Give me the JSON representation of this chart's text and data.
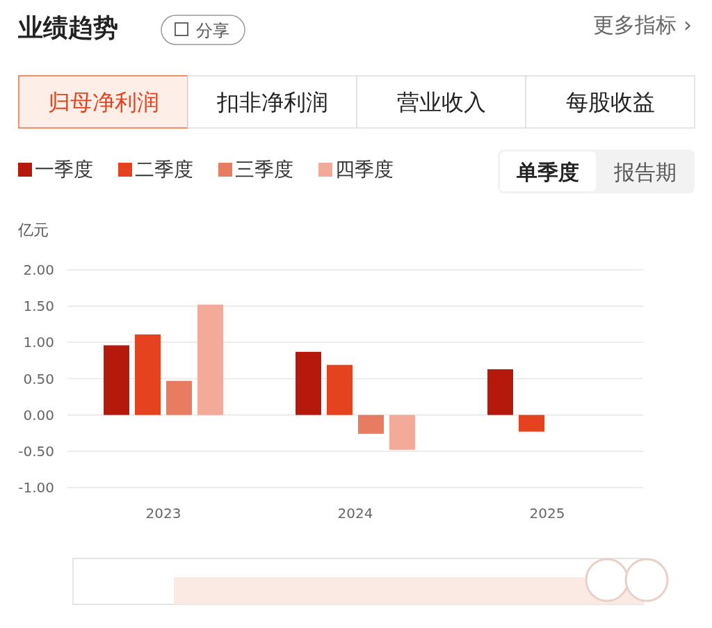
{
  "chart_data": {
    "type": "bar",
    "title": "业绩趋势",
    "ylabel": "亿元",
    "annotations": [
      "分享",
      "更多指标 ›",
      "归母净利润",
      "扣非净利润",
      "营业收入",
      "每股收益",
      "单季度",
      "报告期"
    ],
    "categories": [
      "2023",
      "2024",
      "2025"
    ],
    "series": [
      {
        "name": "一季度",
        "color": "#b5190b",
        "values": [
          0.96,
          0.87,
          0.63
        ]
      },
      {
        "name": "二季度",
        "color": "#e5431f",
        "values": [
          1.11,
          0.69,
          -0.23
        ]
      },
      {
        "name": "三季度",
        "color": "#e87c60",
        "values": [
          0.47,
          -0.26,
          null
        ]
      },
      {
        "name": "四季度",
        "color": "#f4aa98",
        "values": [
          1.52,
          -0.48,
          null
        ]
      }
    ],
    "ylim": [
      -1,
      2
    ],
    "yticks": [
      {
        "value": -1,
        "label": "-1.00"
      },
      {
        "value": -0.5,
        "label": "-0.50"
      },
      {
        "value": 0,
        "label": "0.00"
      },
      {
        "value": 0.5,
        "label": "0.50"
      },
      {
        "value": 1,
        "label": "1.00"
      },
      {
        "value": 1.5,
        "label": "1.50"
      },
      {
        "value": 2,
        "label": "2.00"
      }
    ],
    "grid": "y",
    "legend": "top left"
  }
}
